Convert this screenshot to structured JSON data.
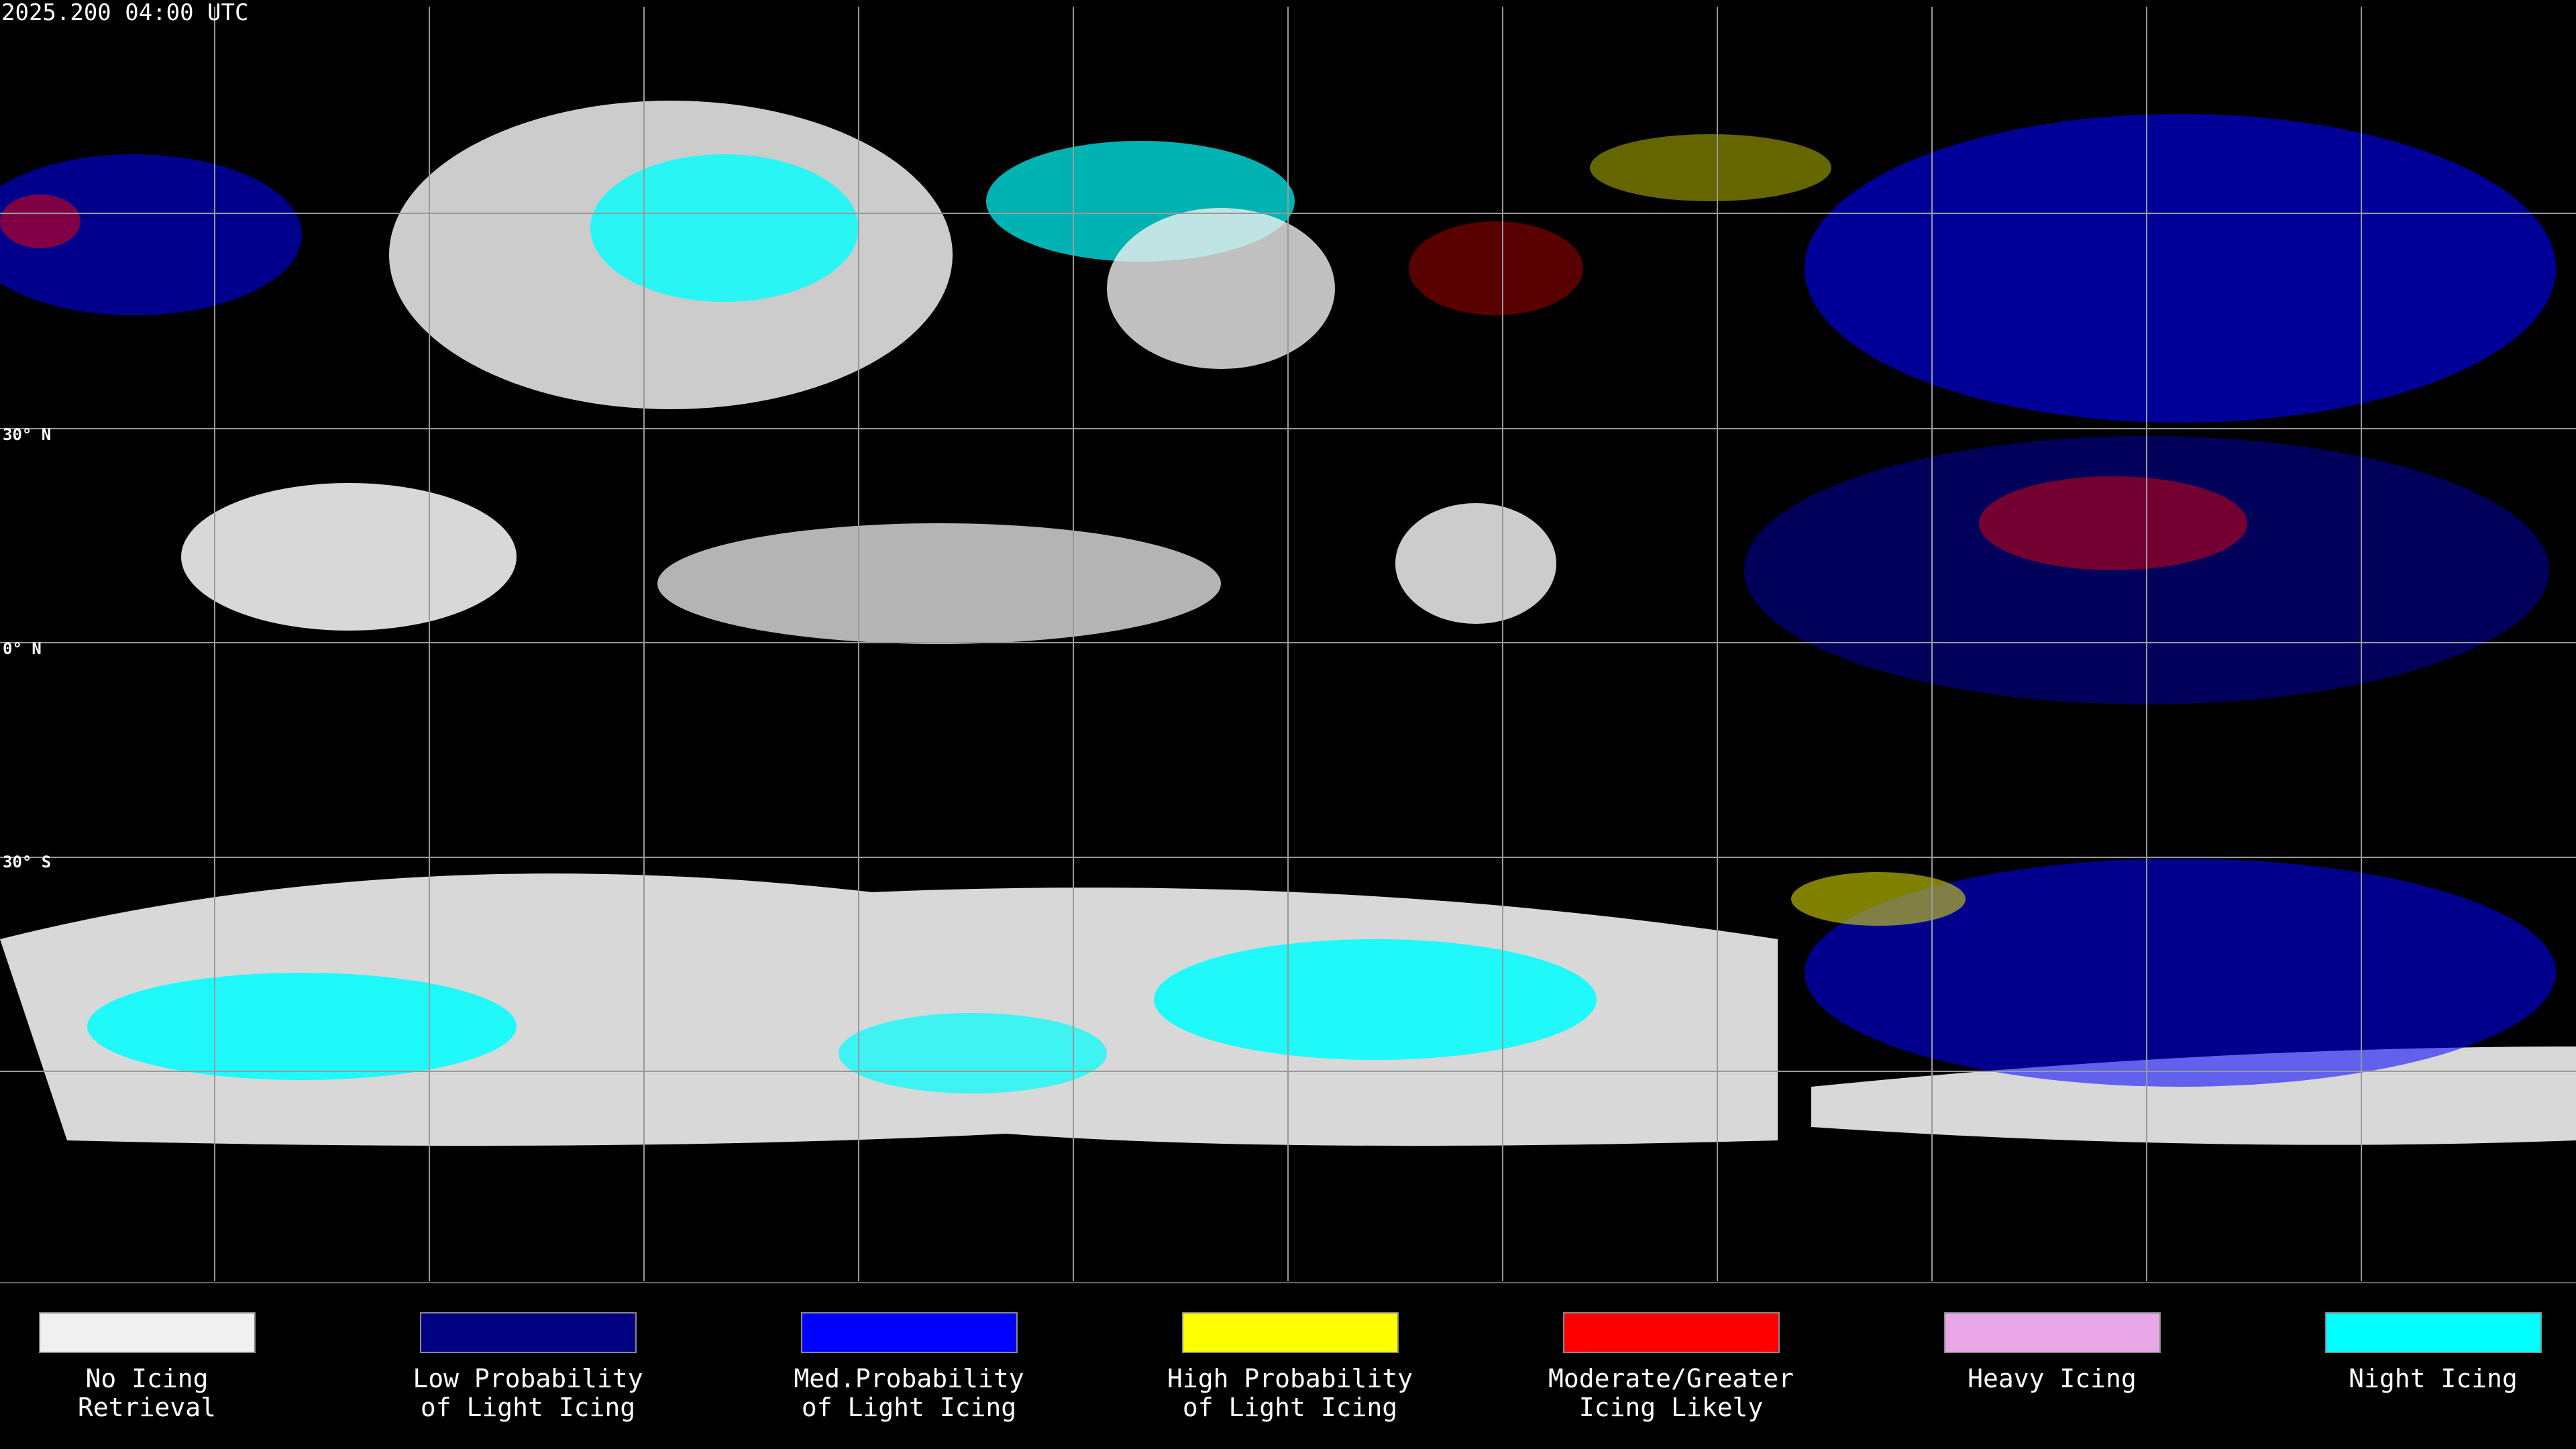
{
  "header": {
    "title": "2025.200 04:00 UTC"
  },
  "map": {
    "lat_labels": [
      "30° N",
      "0° N",
      "30° S"
    ]
  },
  "legend": {
    "items": [
      {
        "label_lines": [
          "No Icing",
          "Retrieval"
        ],
        "color": "#f0f0f0"
      },
      {
        "label_lines": [
          "Low Probability",
          "of Light Icing"
        ],
        "color": "#000080"
      },
      {
        "label_lines": [
          "Med.Probability",
          "of Light Icing"
        ],
        "color": "#0000ff"
      },
      {
        "label_lines": [
          "High Probability",
          "of Light Icing"
        ],
        "color": "#ffff00"
      },
      {
        "label_lines": [
          "Moderate/Greater",
          "Icing Likely"
        ],
        "color": "#ff0000"
      },
      {
        "label_lines": [
          "Heavy Icing"
        ],
        "color": "#e8a8e8"
      },
      {
        "label_lines": [
          "Night Icing"
        ],
        "color": "#00ffff"
      }
    ]
  }
}
